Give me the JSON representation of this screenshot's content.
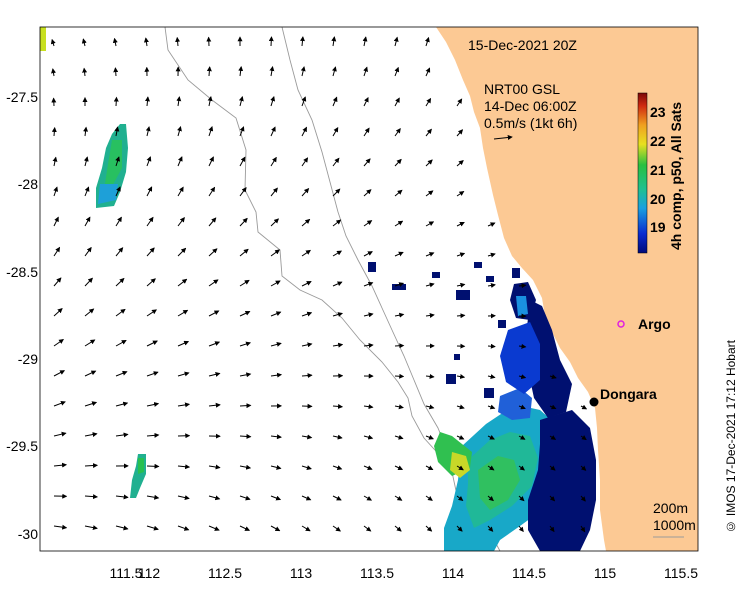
{
  "map": {
    "date_label": "15-Dec-2021 20Z",
    "product_lines": [
      "NRT00 GSL",
      "14-Dec 06:00Z",
      "0.5m/s (1kt 6h)"
    ],
    "colorbar": {
      "title": "4h comp, p50, All Sats",
      "ticks": [
        "23",
        "22",
        "21",
        "20",
        "19"
      ]
    },
    "places": [
      {
        "name": "Argo",
        "lon": 115.1,
        "lat": -28.85
      },
      {
        "name": "Dongara",
        "lon": 114.92,
        "lat": -29.25
      }
    ],
    "depth_labels": [
      "200m",
      "1000m"
    ],
    "x_ticks": [
      "111.5",
      "112",
      "112.5",
      "113",
      "113.5",
      "114",
      "114.5",
      "115",
      "115.5"
    ],
    "y_ticks": [
      "-27.5",
      "-28",
      "-28.5",
      "-29",
      "-29.5",
      "-30"
    ],
    "extent": {
      "lon_min": 111.33,
      "lon_max": 115.65,
      "lat_min": -30.1,
      "lat_max": -27.1
    },
    "colors": {
      "land": "#fcc994",
      "arrows": "#000000",
      "isobath": "#9a9a9a",
      "argo": "#e020e0"
    }
  },
  "credit": "© IMOS 17-Dec-2021 17:12 Hobart"
}
